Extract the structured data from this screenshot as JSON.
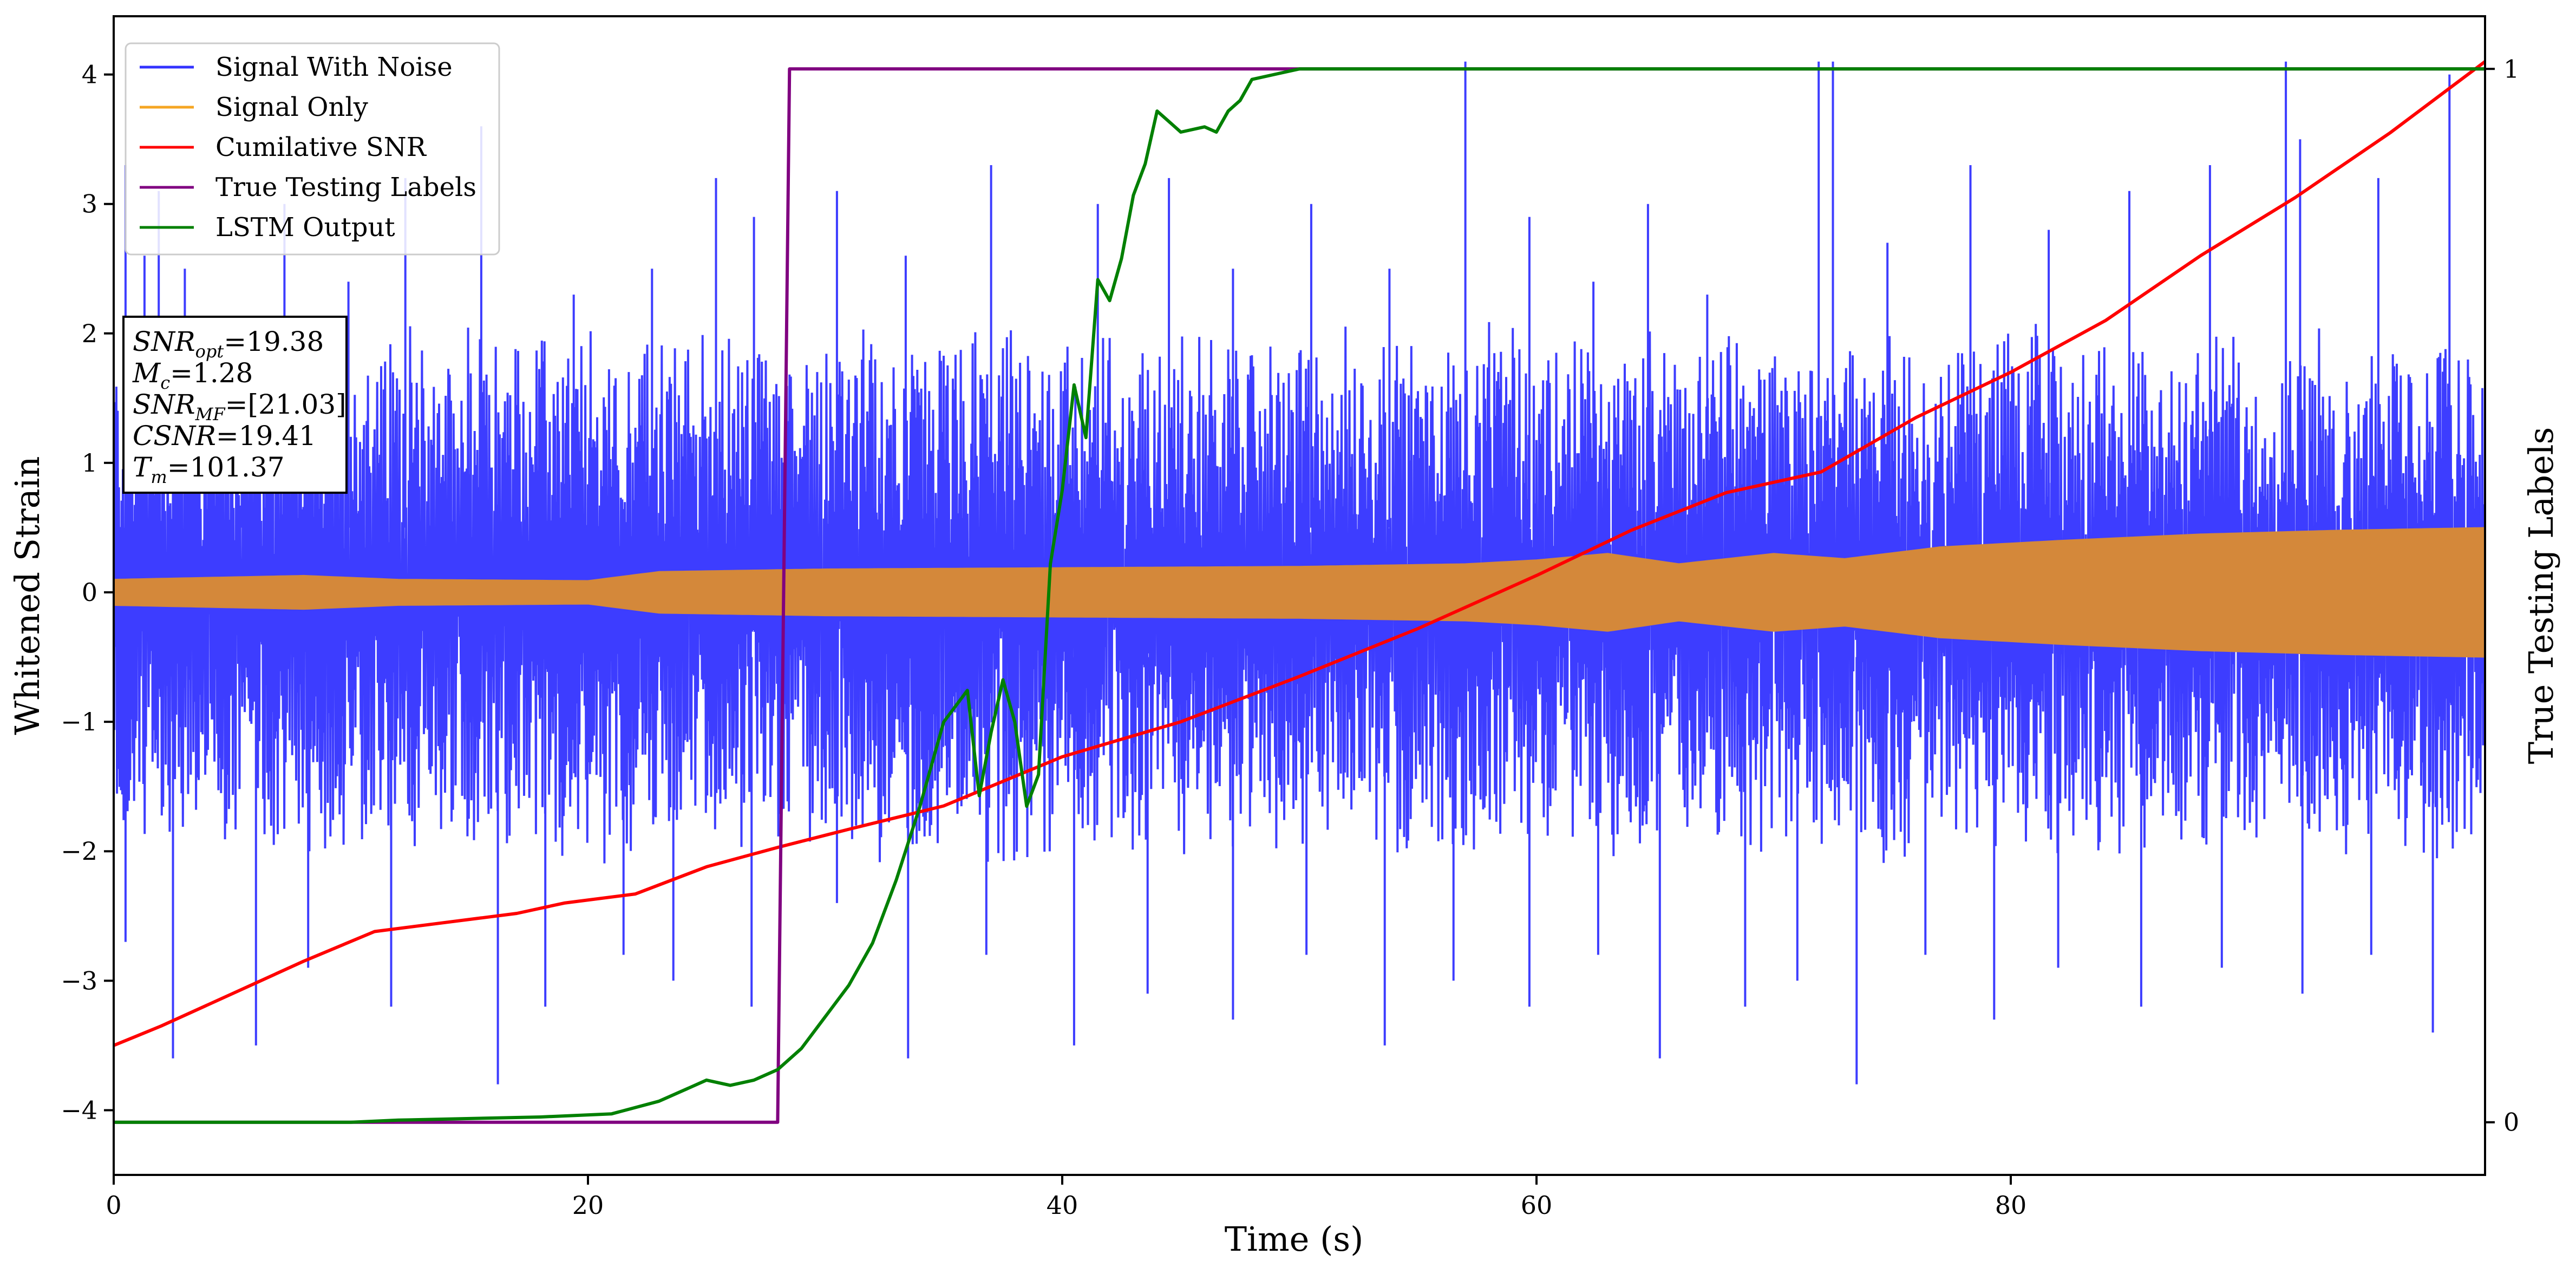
{
  "chart_data": {
    "type": "line",
    "xlabel": "Time (s)",
    "ylabel": "Whitened Strain",
    "y2label": "True Testing Labels",
    "xlim": [
      0,
      100
    ],
    "ylim": [
      -4.5,
      4.45
    ],
    "y2lim": [
      -0.05,
      1.05
    ],
    "xticks": [
      0,
      20,
      40,
      60,
      80
    ],
    "yticks": [
      -4,
      -3,
      -2,
      -1,
      0,
      1,
      2,
      3,
      4
    ],
    "y2ticks": [
      0,
      1
    ],
    "grid": false,
    "legend_position": "top-left",
    "series": [
      {
        "name": "Signal With Noise",
        "axis": "left",
        "color": "#3333ff",
        "style": "dense noisy oscillation",
        "typical_range": [
          -1.6,
          1.6
        ],
        "peaks": [
          [
            0.5,
            3.3
          ],
          [
            1.3,
            2.6
          ],
          [
            1.9,
            3.1
          ],
          [
            3.0,
            2.5
          ],
          [
            5.4,
            2.1
          ],
          [
            7.2,
            3.0
          ],
          [
            9.9,
            2.4
          ],
          [
            12.3,
            3.2
          ],
          [
            15.5,
            3.6
          ],
          [
            19.4,
            2.3
          ],
          [
            22.7,
            2.5
          ],
          [
            25.4,
            3.2
          ],
          [
            27.0,
            2.9
          ],
          [
            30.5,
            3.1
          ],
          [
            33.4,
            2.6
          ],
          [
            37.0,
            3.3
          ],
          [
            41.5,
            3.0
          ],
          [
            44.5,
            3.2
          ],
          [
            47.2,
            2.5
          ],
          [
            50.5,
            3.0
          ],
          [
            53.8,
            2.5
          ],
          [
            57.0,
            4.1
          ],
          [
            59.7,
            2.9
          ],
          [
            62.4,
            2.4
          ],
          [
            64.7,
            3.0
          ],
          [
            67.2,
            2.3
          ],
          [
            71.9,
            4.1
          ],
          [
            72.5,
            4.1
          ],
          [
            74.8,
            2.7
          ],
          [
            78.3,
            3.3
          ],
          [
            81.6,
            2.8
          ],
          [
            85.0,
            3.1
          ],
          [
            88.4,
            3.3
          ],
          [
            91.6,
            4.1
          ],
          [
            92.2,
            3.5
          ],
          [
            95.5,
            3.2
          ],
          [
            98.5,
            4.0
          ]
        ],
        "troughs": [
          [
            0.5,
            -2.7
          ],
          [
            2.5,
            -3.6
          ],
          [
            6.0,
            -3.5
          ],
          [
            8.2,
            -2.9
          ],
          [
            11.7,
            -3.2
          ],
          [
            16.2,
            -3.8
          ],
          [
            18.2,
            -3.2
          ],
          [
            21.5,
            -2.8
          ],
          [
            23.6,
            -3.0
          ],
          [
            26.9,
            -3.2
          ],
          [
            30.5,
            -2.4
          ],
          [
            33.5,
            -3.6
          ],
          [
            36.8,
            -2.8
          ],
          [
            40.5,
            -3.5
          ],
          [
            43.6,
            -3.1
          ],
          [
            47.2,
            -3.3
          ],
          [
            50.3,
            -2.8
          ],
          [
            53.6,
            -3.5
          ],
          [
            56.5,
            -3.0
          ],
          [
            59.7,
            -3.2
          ],
          [
            62.6,
            -2.8
          ],
          [
            65.2,
            -3.6
          ],
          [
            68.8,
            -3.2
          ],
          [
            71.0,
            -3.0
          ],
          [
            73.5,
            -3.8
          ],
          [
            76.4,
            -2.8
          ],
          [
            79.3,
            -3.3
          ],
          [
            82.0,
            -2.9
          ],
          [
            85.5,
            -3.2
          ],
          [
            88.9,
            -2.9
          ],
          [
            92.3,
            -3.1
          ],
          [
            95.2,
            -2.8
          ],
          [
            97.8,
            -3.4
          ]
        ]
      },
      {
        "name": "Signal Only",
        "axis": "left",
        "color": "#d4883a",
        "style": "symmetric chirp envelope",
        "envelope": [
          [
            0,
            0.1
          ],
          [
            8,
            0.13
          ],
          [
            12,
            0.1
          ],
          [
            20,
            0.09
          ],
          [
            23,
            0.16
          ],
          [
            30,
            0.18
          ],
          [
            40,
            0.19
          ],
          [
            50,
            0.2
          ],
          [
            57,
            0.22
          ],
          [
            60,
            0.25
          ],
          [
            63,
            0.3
          ],
          [
            66,
            0.22
          ],
          [
            70,
            0.3
          ],
          [
            73,
            0.26
          ],
          [
            77,
            0.35
          ],
          [
            82,
            0.4
          ],
          [
            88,
            0.45
          ],
          [
            94,
            0.48
          ],
          [
            100,
            0.5
          ]
        ]
      },
      {
        "name": "Cumilative SNR",
        "axis": "left",
        "color": "#ff0000",
        "x": [
          0,
          2,
          5,
          8,
          11,
          14,
          17,
          19,
          22,
          25,
          28,
          31,
          35,
          40,
          45,
          50,
          55,
          60,
          64,
          68,
          72,
          76,
          80,
          84,
          88,
          92,
          96,
          100
        ],
        "y": [
          -3.5,
          -3.35,
          -3.1,
          -2.85,
          -2.62,
          -2.55,
          -2.48,
          -2.4,
          -2.33,
          -2.12,
          -1.97,
          -1.83,
          -1.65,
          -1.27,
          -1.0,
          -0.65,
          -0.28,
          0.13,
          0.48,
          0.77,
          0.93,
          1.35,
          1.7,
          2.1,
          2.6,
          3.05,
          3.55,
          4.1
        ]
      },
      {
        "name": "True Testing Labels",
        "axis": "right",
        "color": "#800080",
        "x": [
          0,
          28,
          28.5,
          100
        ],
        "y": [
          0,
          0,
          1,
          1
        ]
      },
      {
        "name": "LSTM Output",
        "axis": "right",
        "color": "#008000",
        "x": [
          0,
          10,
          12,
          14,
          18,
          21,
          23,
          24,
          25,
          26,
          27,
          28,
          29,
          30,
          31,
          32,
          33,
          34,
          35,
          36,
          36.5,
          37,
          37.5,
          38,
          38.5,
          39,
          39.5,
          40,
          40.5,
          41,
          41.5,
          42,
          42.5,
          43,
          43.5,
          44,
          44.5,
          45,
          46,
          46.5,
          47,
          47.5,
          48,
          49,
          50,
          52,
          54,
          100
        ],
        "y": [
          0,
          0,
          0.002,
          0.003,
          0.005,
          0.008,
          0.02,
          0.03,
          0.04,
          0.035,
          0.04,
          0.05,
          0.07,
          0.1,
          0.13,
          0.17,
          0.23,
          0.3,
          0.38,
          0.41,
          0.31,
          0.37,
          0.42,
          0.38,
          0.3,
          0.33,
          0.53,
          0.6,
          0.7,
          0.65,
          0.8,
          0.78,
          0.82,
          0.88,
          0.91,
          0.96,
          0.95,
          0.94,
          0.945,
          0.94,
          0.96,
          0.97,
          0.99,
          0.995,
          1.0,
          1.0,
          1.0,
          1.0
        ]
      }
    ],
    "annotation_lines": [
      {
        "label": "SNR",
        "sub": "opt",
        "value": "=19.38"
      },
      {
        "label": "M",
        "sub": "c",
        "value": "=1.28"
      },
      {
        "label": "SNR",
        "sub": "MF",
        "value": "=[21.03]"
      },
      {
        "label": "CSNR",
        "sub": "",
        "value": "=19.41"
      },
      {
        "label": "T",
        "sub": "m",
        "value": "=101.37"
      }
    ]
  }
}
